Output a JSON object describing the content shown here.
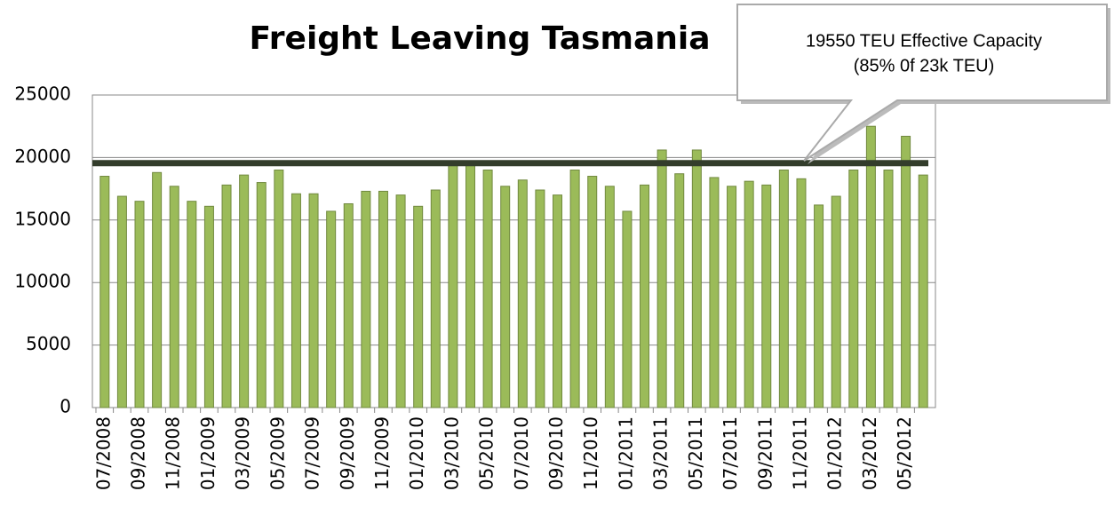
{
  "chart_data": {
    "type": "bar",
    "title": "Freight Leaving Tasmania",
    "categories": [
      "07/2008",
      null,
      "09/2008",
      null,
      "11/2008",
      null,
      "01/2009",
      null,
      "03/2009",
      null,
      "05/2009",
      null,
      "07/2009",
      null,
      "09/2009",
      null,
      "11/2009",
      null,
      "01/2010",
      null,
      "03/2010",
      null,
      "05/2010",
      null,
      "07/2010",
      null,
      "09/2010",
      null,
      "11/2010",
      null,
      "01/2011",
      null,
      "03/2011",
      null,
      "05/2011",
      null,
      "07/2011",
      null,
      "09/2011",
      null,
      "11/2011",
      null,
      "01/2012",
      null,
      "03/2012",
      null,
      "05/2012",
      null
    ],
    "values": [
      18500,
      16900,
      16500,
      18800,
      17700,
      16500,
      16100,
      17800,
      18600,
      18000,
      19000,
      17100,
      17100,
      15700,
      16300,
      17300,
      17300,
      17000,
      16100,
      17400,
      19600,
      19500,
      19000,
      17700,
      18200,
      17400,
      17000,
      19000,
      18500,
      17700,
      15700,
      17800,
      20600,
      18700,
      20600,
      18400,
      17700,
      18100,
      17800,
      19000,
      18300,
      16200,
      16900,
      19000,
      22500,
      19000,
      21700,
      18600
    ],
    "color": "#9bbb59",
    "reference_line": {
      "value": 19550,
      "color": "#333d2b"
    },
    "annotation": [
      "19550 TEU Effective Capacity",
      "(85% 0f 23k TEU)"
    ],
    "ylim": [
      0,
      25000
    ],
    "yticks": [
      0,
      5000,
      10000,
      15000,
      20000,
      25000
    ],
    "grid": true
  }
}
